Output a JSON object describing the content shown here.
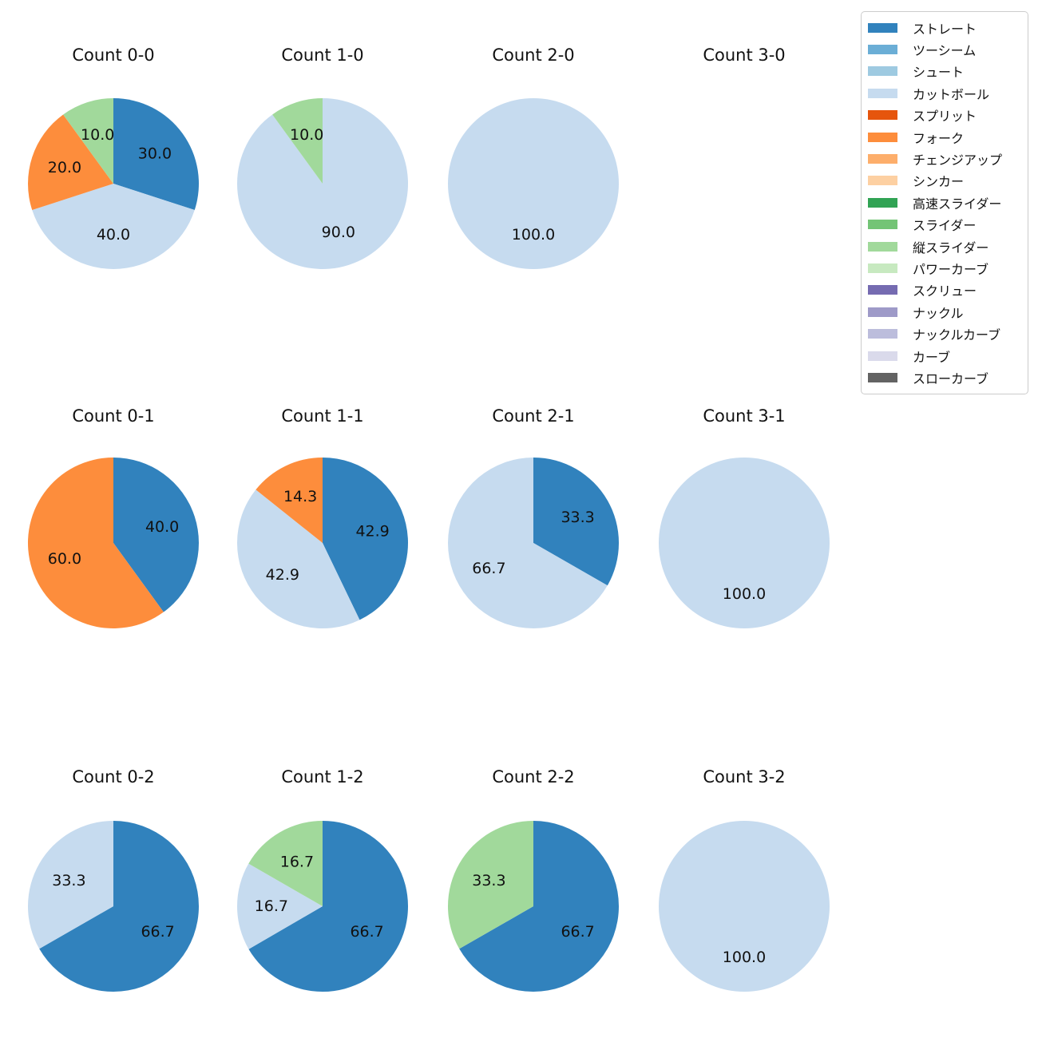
{
  "figure": {
    "background": "#ffffff",
    "grid": {
      "rows": 3,
      "cols": 4
    }
  },
  "chart_style": {
    "start_angle": "12-oclock",
    "direction": "clockwise",
    "pct_distance": 0.6,
    "legend_position": "upper-right"
  },
  "legend": {
    "items": [
      {
        "label": "ストレート",
        "color": "#3182bd"
      },
      {
        "label": "ツーシーム",
        "color": "#6baed6"
      },
      {
        "label": "シュート",
        "color": "#9ecae1"
      },
      {
        "label": "カットボール",
        "color": "#c6dbef"
      },
      {
        "label": "スプリット",
        "color": "#e6550d"
      },
      {
        "label": "フォーク",
        "color": "#fd8d3c"
      },
      {
        "label": "チェンジアップ",
        "color": "#fdae6b"
      },
      {
        "label": "シンカー",
        "color": "#fdd0a2"
      },
      {
        "label": "高速スライダー",
        "color": "#31a354"
      },
      {
        "label": "スライダー",
        "color": "#74c476"
      },
      {
        "label": "縦スライダー",
        "color": "#a1d99b"
      },
      {
        "label": "パワーカーブ",
        "color": "#c7e9c0"
      },
      {
        "label": "スクリュー",
        "color": "#756bb1"
      },
      {
        "label": "ナックル",
        "color": "#9e9ac8"
      },
      {
        "label": "ナックルカーブ",
        "color": "#bcbddc"
      },
      {
        "label": "カーブ",
        "color": "#dadaeb"
      },
      {
        "label": "スローカーブ",
        "color": "#636363"
      }
    ]
  },
  "chart_data": [
    {
      "type": "pie",
      "title": "Count 0-0",
      "slices": [
        {
          "label": "ストレート",
          "value": 30.0,
          "pct_label": "30.0"
        },
        {
          "label": "カットボール",
          "value": 40.0,
          "pct_label": "40.0"
        },
        {
          "label": "フォーク",
          "value": 20.0,
          "pct_label": "20.0"
        },
        {
          "label": "縦スライダー",
          "value": 10.0,
          "pct_label": "10.0"
        }
      ]
    },
    {
      "type": "pie",
      "title": "Count 1-0",
      "slices": [
        {
          "label": "カットボール",
          "value": 90.0,
          "pct_label": "90.0"
        },
        {
          "label": "縦スライダー",
          "value": 10.0,
          "pct_label": "10.0"
        }
      ]
    },
    {
      "type": "pie",
      "title": "Count 2-0",
      "slices": [
        {
          "label": "カットボール",
          "value": 100.0,
          "pct_label": "100.0"
        }
      ]
    },
    {
      "type": "pie",
      "title": "Count 3-0",
      "slices": []
    },
    {
      "type": "pie",
      "title": "Count 0-1",
      "slices": [
        {
          "label": "ストレート",
          "value": 40.0,
          "pct_label": "40.0"
        },
        {
          "label": "フォーク",
          "value": 60.0,
          "pct_label": "60.0"
        }
      ]
    },
    {
      "type": "pie",
      "title": "Count 1-1",
      "slices": [
        {
          "label": "ストレート",
          "value": 42.9,
          "pct_label": "42.9"
        },
        {
          "label": "カットボール",
          "value": 42.9,
          "pct_label": "42.9"
        },
        {
          "label": "フォーク",
          "value": 14.3,
          "pct_label": "14.3"
        }
      ]
    },
    {
      "type": "pie",
      "title": "Count 2-1",
      "slices": [
        {
          "label": "ストレート",
          "value": 33.3,
          "pct_label": "33.3"
        },
        {
          "label": "カットボール",
          "value": 66.7,
          "pct_label": "66.7"
        }
      ]
    },
    {
      "type": "pie",
      "title": "Count 3-1",
      "slices": [
        {
          "label": "カットボール",
          "value": 100.0,
          "pct_label": "100.0"
        }
      ]
    },
    {
      "type": "pie",
      "title": "Count 0-2",
      "slices": [
        {
          "label": "ストレート",
          "value": 66.7,
          "pct_label": "66.7"
        },
        {
          "label": "カットボール",
          "value": 33.3,
          "pct_label": "33.3"
        }
      ]
    },
    {
      "type": "pie",
      "title": "Count 1-2",
      "slices": [
        {
          "label": "ストレート",
          "value": 66.7,
          "pct_label": "66.7"
        },
        {
          "label": "カットボール",
          "value": 16.7,
          "pct_label": "16.7"
        },
        {
          "label": "縦スライダー",
          "value": 16.7,
          "pct_label": "16.7"
        }
      ]
    },
    {
      "type": "pie",
      "title": "Count 2-2",
      "slices": [
        {
          "label": "ストレート",
          "value": 66.7,
          "pct_label": "66.7"
        },
        {
          "label": "縦スライダー",
          "value": 33.3,
          "pct_label": "33.3"
        }
      ]
    },
    {
      "type": "pie",
      "title": "Count 3-2",
      "slices": [
        {
          "label": "カットボール",
          "value": 100.0,
          "pct_label": "100.0"
        }
      ]
    }
  ]
}
